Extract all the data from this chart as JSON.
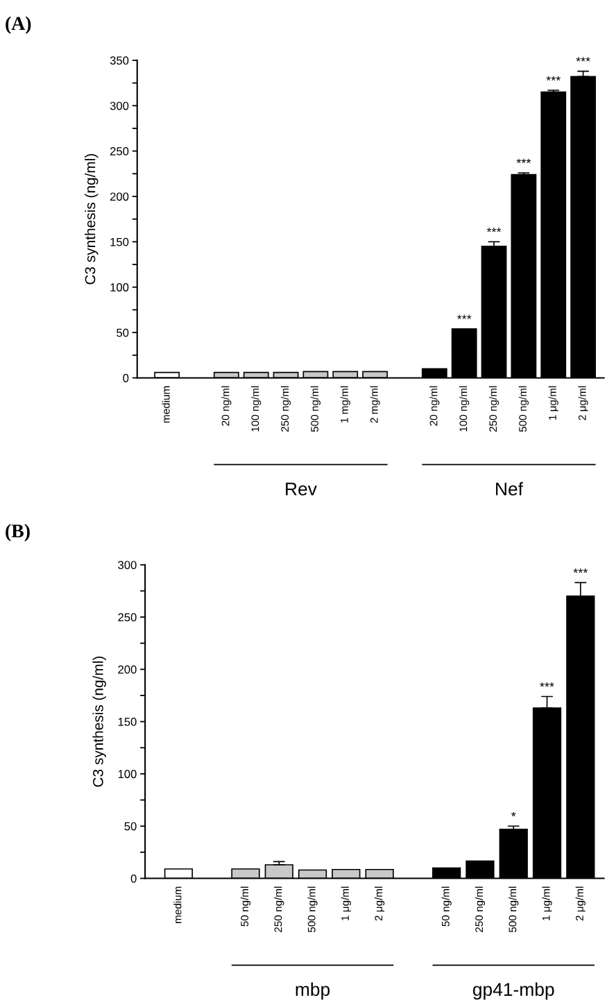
{
  "chart_data": [
    {
      "type": "bar",
      "title": "(A)",
      "ylabel": "C3 synthesis (ng/ml)",
      "categories": [
        "medium",
        null,
        "20 ng/ml",
        "100 ng/ml",
        "250 ng/ml",
        "500 ng/ml",
        "1 mg/ml",
        "2 mg/ml",
        null,
        "20 ng/ml",
        "100 ng/ml",
        "250 ng/ml",
        "500 ng/ml",
        "1 μg/ml",
        "2 μg/ml"
      ],
      "values": [
        6,
        null,
        6,
        6,
        6,
        7,
        7,
        7,
        null,
        10,
        54,
        145,
        224,
        315,
        332
      ],
      "errors": [
        null,
        null,
        null,
        null,
        null,
        null,
        null,
        null,
        null,
        null,
        null,
        5,
        2,
        2,
        6
      ],
      "colors": [
        "#ffffff",
        null,
        "#c8c8c8",
        "#c8c8c8",
        "#c8c8c8",
        "#c8c8c8",
        "#c8c8c8",
        "#c8c8c8",
        null,
        "#000000",
        "#000000",
        "#000000",
        "#000000",
        "#000000",
        "#000000"
      ],
      "value_labels": [
        null,
        null,
        null,
        null,
        null,
        null,
        null,
        null,
        null,
        null,
        "***",
        "***",
        "***",
        "***",
        "***"
      ],
      "ylim": [
        0,
        350
      ],
      "yticks": [
        0,
        {
          "value": 25,
          "label": null
        },
        50,
        {
          "value": 75,
          "label": null
        },
        100,
        {
          "value": 125,
          "label": null
        },
        150,
        {
          "value": 175,
          "label": null
        },
        200,
        {
          "value": 225,
          "label": null
        },
        250,
        {
          "value": 275,
          "label": null
        },
        300,
        {
          "value": 325,
          "label": null
        },
        350
      ],
      "annotations": [
        "Rev",
        "Nef"
      ],
      "grid": false,
      "legend": false
    },
    {
      "type": "bar",
      "title": "(B)",
      "ylabel": "C3 synthesis (ng/ml)",
      "categories": [
        "medium",
        null,
        "50 ng/ml",
        "250 ng/ml",
        "500 ng/ml",
        "1 μg/ml",
        "2 μg/ml",
        null,
        "50 ng/ml",
        "250 ng/ml",
        "500 ng/ml",
        "1 μg/ml",
        "2 μg/ml"
      ],
      "values": [
        9,
        null,
        9,
        13,
        8,
        8.5,
        8.5,
        null,
        10,
        16.5,
        47,
        163,
        270
      ],
      "errors": [
        null,
        null,
        null,
        3,
        null,
        null,
        null,
        null,
        null,
        null,
        3,
        11,
        13
      ],
      "colors": [
        "#ffffff",
        null,
        "#c8c8c8",
        "#c8c8c8",
        "#c8c8c8",
        "#c8c8c8",
        "#c8c8c8",
        null,
        "#000000",
        "#000000",
        "#000000",
        "#000000",
        "#000000"
      ],
      "value_labels": [
        null,
        null,
        null,
        null,
        null,
        null,
        null,
        null,
        null,
        null,
        "*",
        "***",
        "***"
      ],
      "ylim": [
        0,
        300
      ],
      "yticks": [
        0,
        {
          "value": 25,
          "label": null
        },
        50,
        {
          "value": 75,
          "label": null
        },
        100,
        {
          "value": 125,
          "label": null
        },
        150,
        {
          "value": 175,
          "label": null
        },
        200,
        {
          "value": 225,
          "label": null
        },
        250,
        {
          "value": 275,
          "label": null
        },
        300
      ],
      "annotations": [
        "mbp",
        "gp41-mbp"
      ],
      "grid": false,
      "legend": false
    }
  ]
}
